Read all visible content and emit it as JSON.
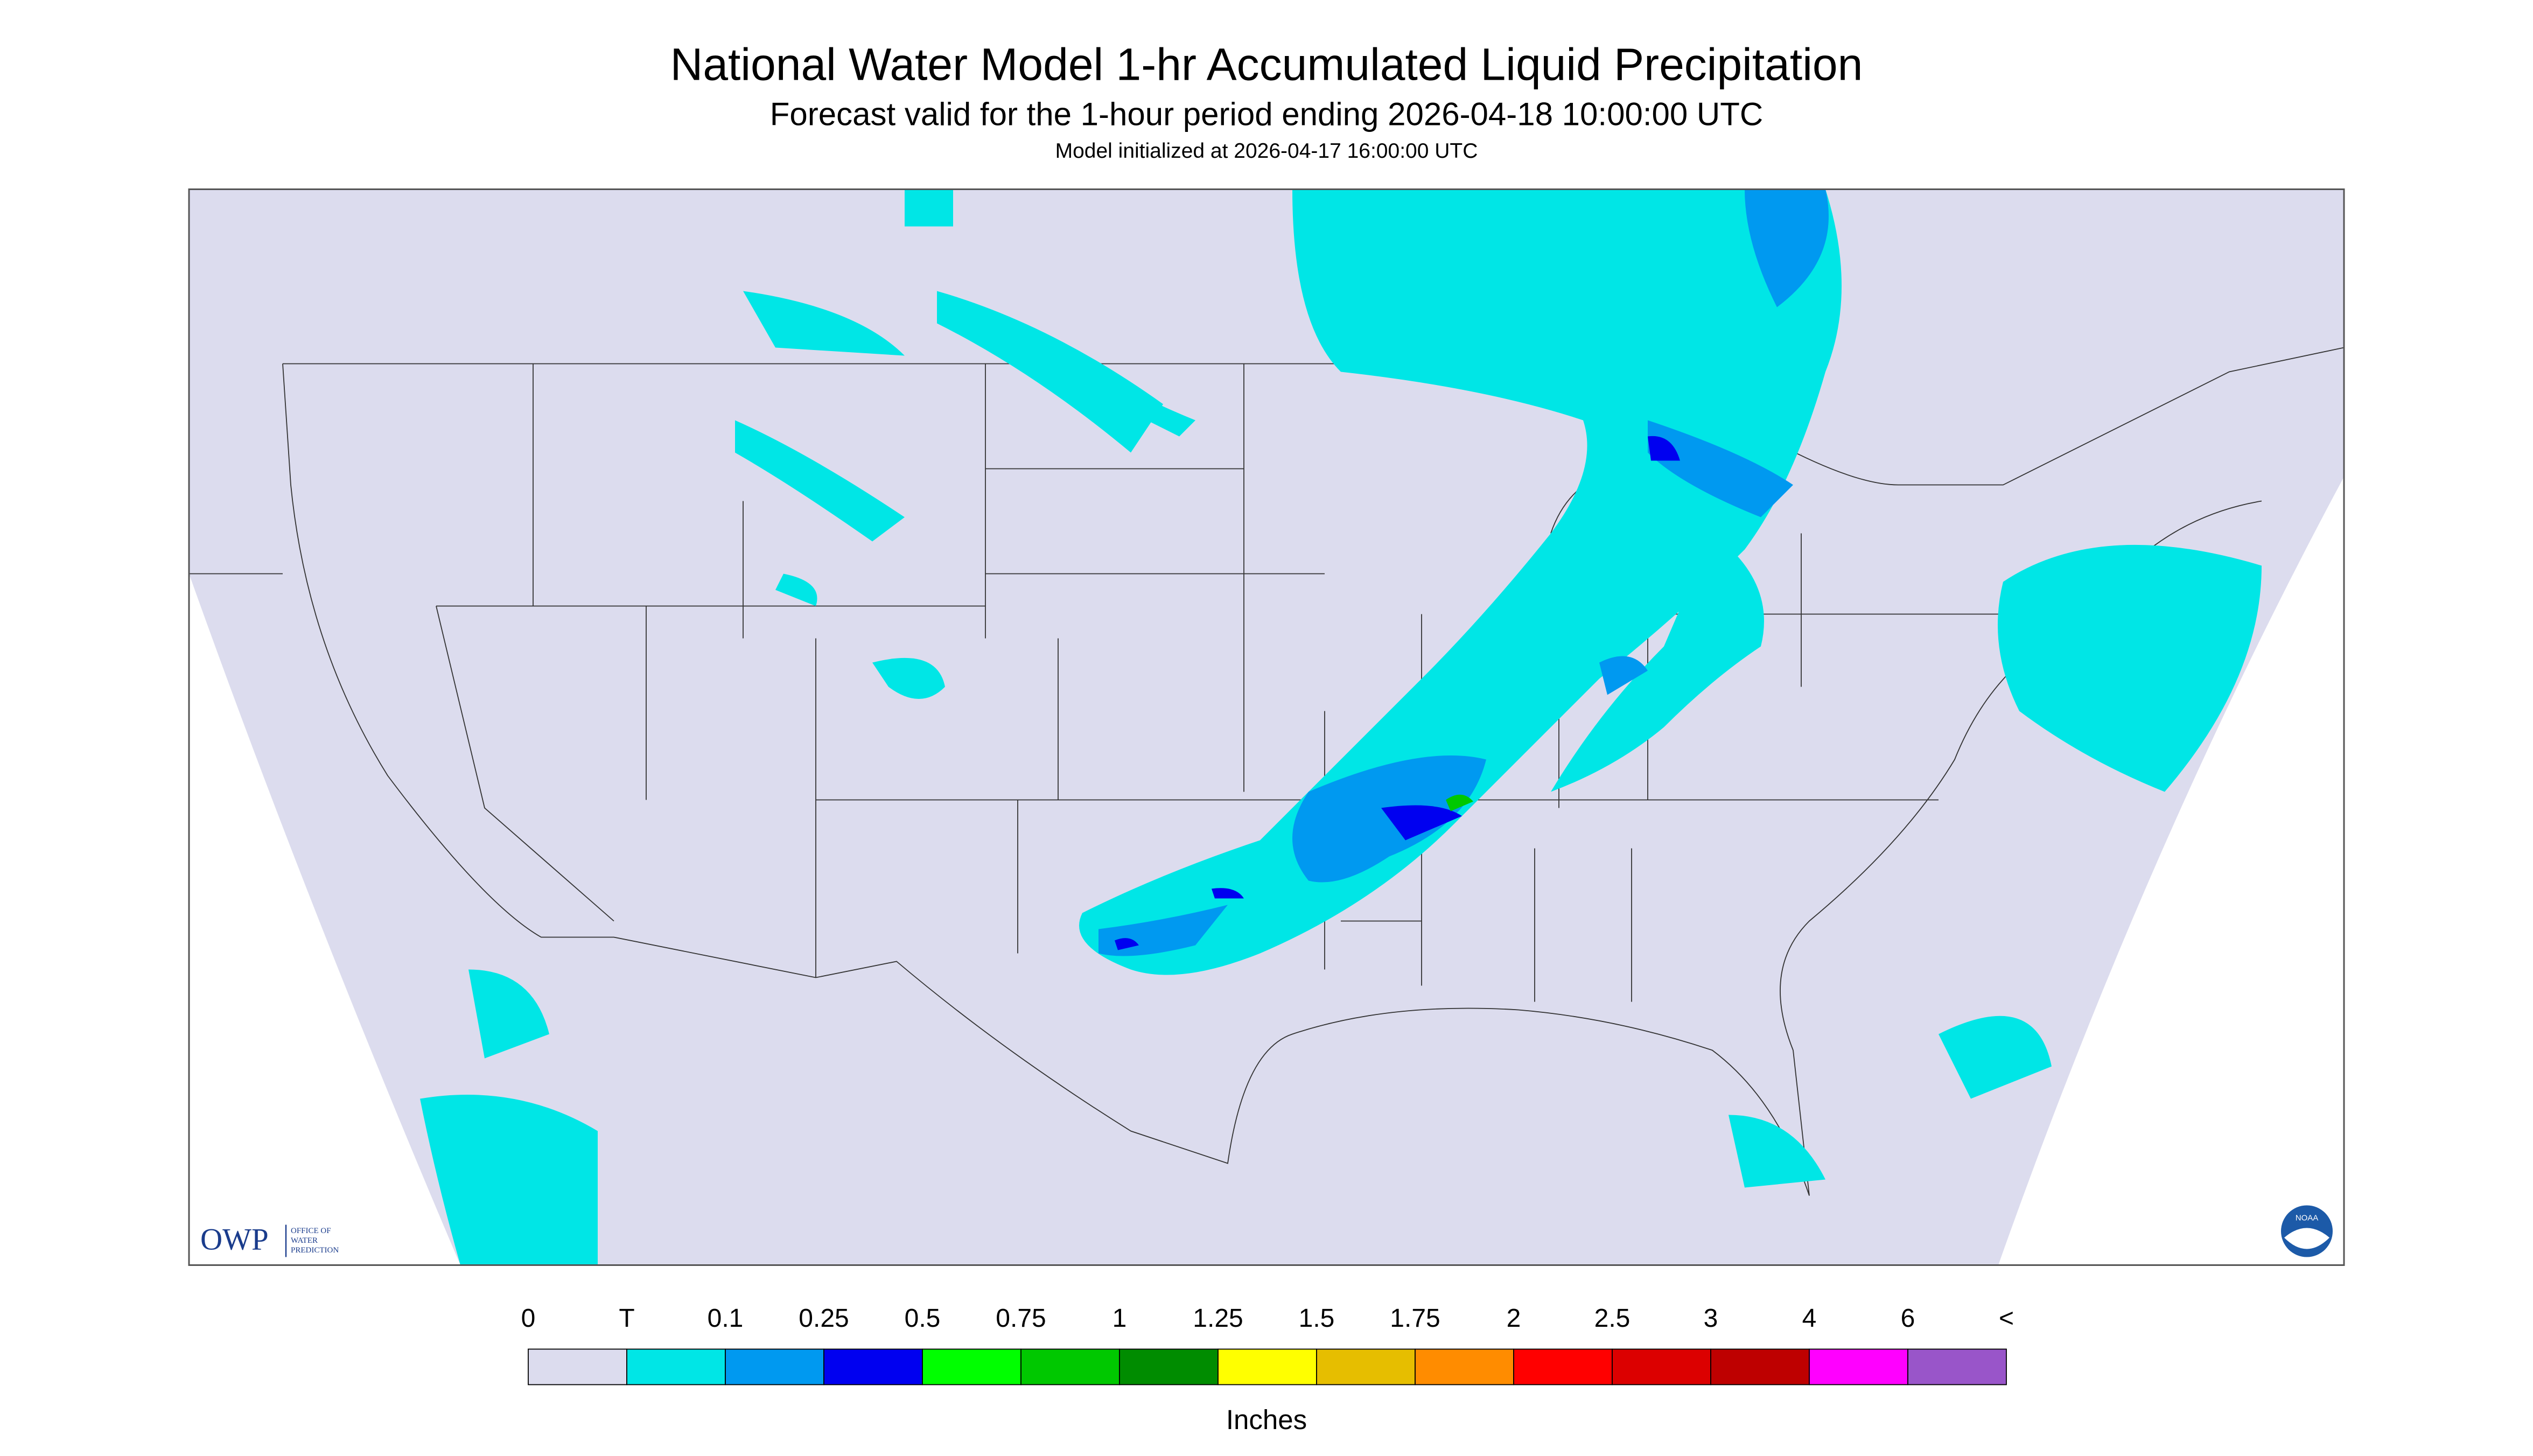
{
  "header": {
    "title": "National Water Model 1-hr Accumulated Liquid Precipitation",
    "subtitle": "Forecast valid for the 1-hour period ending 2026-04-18 10:00:00 UTC",
    "note": "Model initialized at 2026-04-17 16:00:00 UTC"
  },
  "logos": {
    "owp": "OWP",
    "owp_text": [
      "OFFICE OF",
      "WATER",
      "PREDICTION"
    ],
    "noaa": "NOAA"
  },
  "legend": {
    "labels": [
      "0",
      "T",
      "0.1",
      "0.25",
      "0.5",
      "0.75",
      "1",
      "1.25",
      "1.5",
      "1.75",
      "2",
      "2.5",
      "3",
      "4",
      "6",
      "<"
    ],
    "colors": [
      "#dcdcee",
      "#00e6e6",
      "#0099f0",
      "#0000f0",
      "#00ff00",
      "#00c800",
      "#008c00",
      "#ffff00",
      "#e6be00",
      "#ff8c00",
      "#ff0000",
      "#dc0000",
      "#be0000",
      "#ff00ff",
      "#9955c9"
    ],
    "unit": "Inches"
  }
}
